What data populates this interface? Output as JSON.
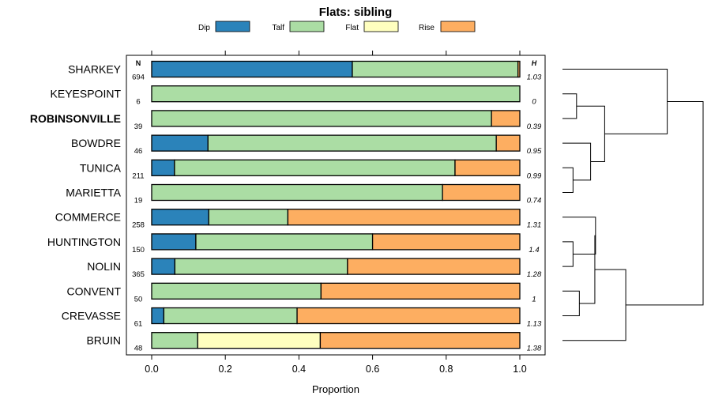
{
  "chart_data": {
    "type": "bar",
    "stacked": true,
    "orientation": "horizontal",
    "title": "Flats: sibling",
    "xlabel": "Proportion",
    "ylabel": "",
    "xlim": [
      0,
      1
    ],
    "xticks": [
      "0.0",
      "0.2",
      "0.4",
      "0.6",
      "0.8",
      "1.0"
    ],
    "n_header": "N",
    "h_header": "H",
    "legend_position": "top",
    "categories": [
      "SHARKEY",
      "KEYESPOINT",
      "ROBINSONVILLE",
      "BOWDRE",
      "TUNICA",
      "MARIETTA",
      "COMMERCE",
      "HUNTINGTON",
      "NOLIN",
      "CONVENT",
      "CREVASSE",
      "BRUIN"
    ],
    "highlighted": "ROBINSONVILLE",
    "n": [
      "694",
      "6",
      "39",
      "46",
      "211",
      "19",
      "258",
      "150",
      "365",
      "50",
      "61",
      "48"
    ],
    "h": [
      "1.03",
      "0",
      "0.39",
      "0.95",
      "0.99",
      "0.74",
      "1.31",
      "1.4",
      "1.28",
      "1",
      "1.13",
      "1.38"
    ],
    "series": [
      {
        "name": "Dip",
        "color": "#2b83ba",
        "values": [
          0.545,
          0,
          0,
          0.153,
          0.062,
          0,
          0.155,
          0.12,
          0.063,
          0,
          0.033,
          0
        ]
      },
      {
        "name": "Talf",
        "color": "#abdda4",
        "values": [
          0.45,
          1.0,
          0.923,
          0.783,
          0.762,
          0.79,
          0.215,
          0.48,
          0.469,
          0.46,
          0.362,
          0.125
        ]
      },
      {
        "name": "Flat",
        "color": "#ffffbf",
        "values": [
          0,
          0,
          0,
          0,
          0,
          0,
          0,
          0,
          0,
          0,
          0,
          0.333
        ]
      },
      {
        "name": "Rise",
        "color": "#fdae61",
        "values": [
          0.005,
          0,
          0.077,
          0.064,
          0.176,
          0.21,
          0.63,
          0.4,
          0.468,
          0.54,
          0.605,
          0.542
        ]
      }
    ],
    "dendrogram": {
      "leaf_order": [
        "SHARKEY",
        "KEYESPOINT",
        "ROBINSONVILLE",
        "BOWDRE",
        "TUNICA",
        "MARIETTA",
        "COMMERCE",
        "HUNTINGTON",
        "NOLIN",
        "CONVENT",
        "CREVASSE",
        "BRUIN"
      ],
      "merges": [
        {
          "id": "n1",
          "left": "KEYESPOINT",
          "right": "ROBINSONVILLE",
          "height": 0.1
        },
        {
          "id": "n2",
          "left": "TUNICA",
          "right": "MARIETTA",
          "height": 0.075
        },
        {
          "id": "n3",
          "left": "BOWDRE",
          "right": "n2",
          "height": 0.2
        },
        {
          "id": "n4",
          "left": "n1",
          "right": "n3",
          "height": 0.3
        },
        {
          "id": "n5",
          "left": "SHARKEY",
          "right": "n4",
          "height": 0.745
        },
        {
          "id": "n6",
          "left": "HUNTINGTON",
          "right": "NOLIN",
          "height": 0.075
        },
        {
          "id": "n7",
          "left": "n6",
          "right": "COMMERCE",
          "height": 0.235
        },
        {
          "id": "n8",
          "left": "CONVENT",
          "right": "CREVASSE",
          "height": 0.12
        },
        {
          "id": "n9",
          "left": "n8",
          "right": "n7",
          "height": 0.23
        },
        {
          "id": "n10",
          "left": "n9",
          "right": "BRUIN",
          "height": 0.45
        },
        {
          "id": "n11",
          "left": "n5",
          "right": "n10",
          "height": 1.0
        }
      ]
    }
  }
}
